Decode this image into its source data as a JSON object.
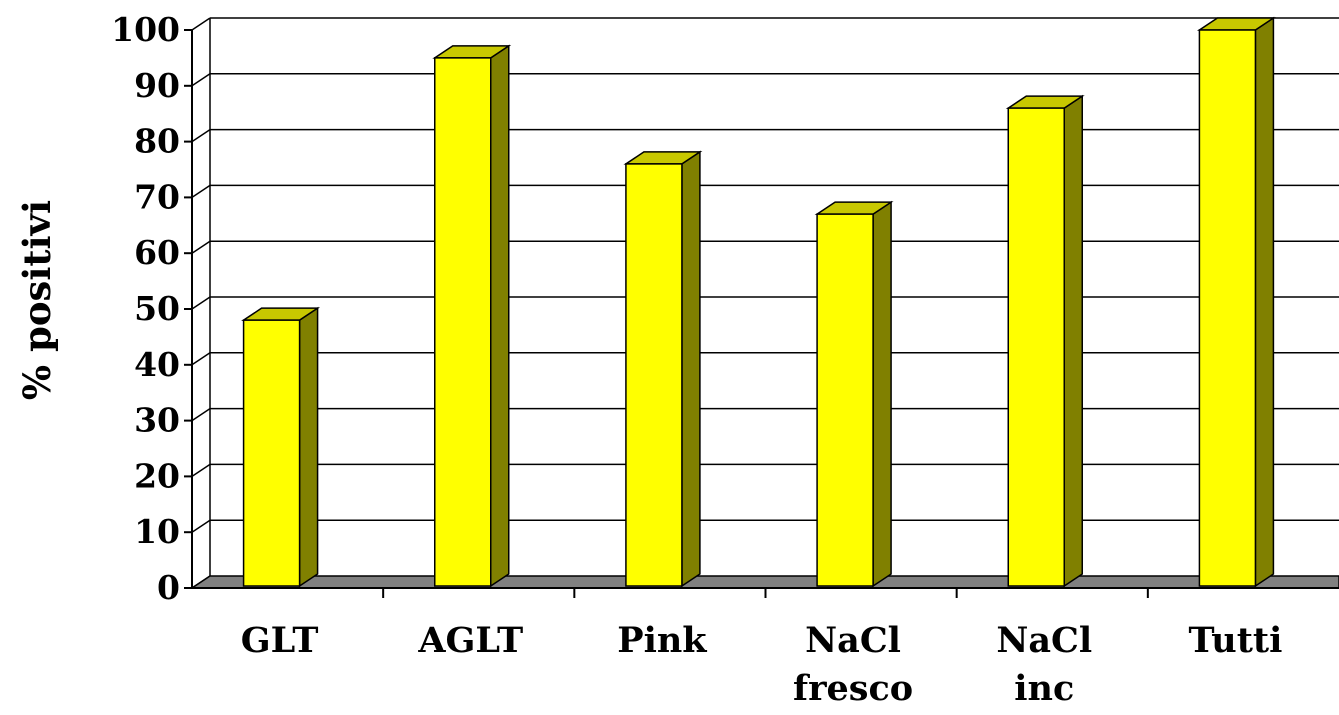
{
  "chart_data": {
    "type": "bar",
    "ylabel": "% positivi",
    "xlabel": "",
    "ylim": [
      0,
      100
    ],
    "yticks": [
      "0",
      "10",
      "20",
      "30",
      "40",
      "50",
      "60",
      "70",
      "80",
      "90",
      "100"
    ],
    "grid": true,
    "categories": [
      {
        "lines": [
          "GLT"
        ]
      },
      {
        "lines": [
          "AGLT"
        ]
      },
      {
        "lines": [
          "Pink"
        ]
      },
      {
        "lines": [
          "NaCl",
          "fresco"
        ]
      },
      {
        "lines": [
          "NaCl",
          "inc"
        ]
      },
      {
        "lines": [
          "Tutti"
        ]
      }
    ],
    "values": [
      48,
      95,
      76,
      67,
      86,
      100
    ],
    "colors": {
      "bar_front": "#ffff00",
      "bar_side": "#808000",
      "bar_top": "#c8c800",
      "floor": "#808080",
      "grid": "#000000"
    }
  }
}
